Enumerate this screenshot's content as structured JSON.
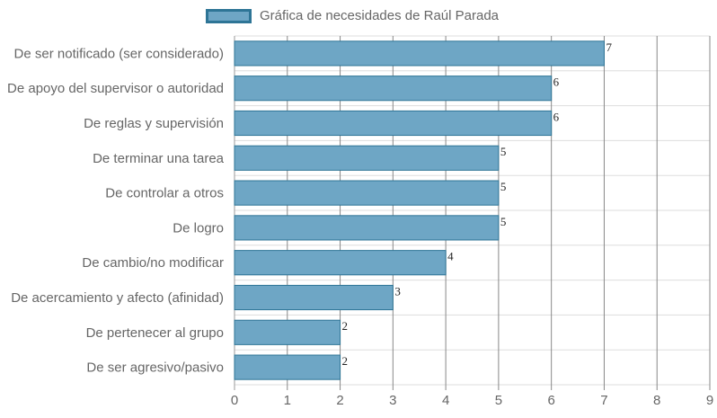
{
  "chart_data": {
    "type": "bar",
    "orientation": "horizontal",
    "legend": {
      "label": "Gráfica de necesidades de Raúl Parada",
      "position": "top"
    },
    "categories": [
      "De ser notificado (ser considerado)",
      "De apoyo del supervisor o autoridad",
      "De reglas y supervisión",
      "De terminar una tarea",
      "De controlar a otros",
      "De logro",
      "De cambio/no modificar",
      "De acercamiento y afecto (afinidad)",
      "De pertenecer al grupo",
      "De ser agresivo/pasivo"
    ],
    "series": [
      {
        "name": "Gráfica de necesidades de Raúl Parada",
        "values": [
          7,
          6,
          6,
          5,
          5,
          5,
          4,
          3,
          2,
          2
        ]
      }
    ],
    "xlim": [
      0,
      9
    ],
    "ticks": [
      "0",
      "1",
      "2",
      "3",
      "4",
      "5",
      "6",
      "7",
      "8",
      "9"
    ],
    "grid": true,
    "colors": {
      "bar_fill": "#6ea6c5",
      "bar_border": "#2e7596",
      "grid": "#dddddd",
      "vgrid": "#888888"
    }
  }
}
